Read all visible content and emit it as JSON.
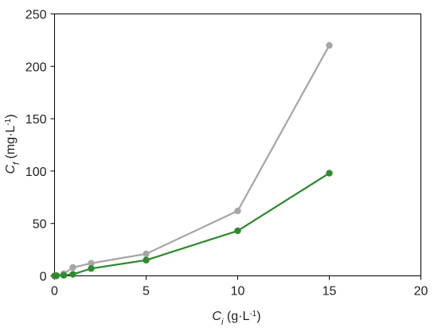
{
  "chart_data": {
    "type": "line",
    "title": "",
    "xlabel": {
      "main": "C",
      "sub": "i",
      "unit": " (g·L",
      "sup": "-1",
      "end": ")"
    },
    "ylabel": {
      "main": "C",
      "sub": "f",
      "unit": " (mg·L",
      "sup": "-1",
      "end": ")"
    },
    "xlim": [
      0,
      20
    ],
    "ylim": [
      0,
      250
    ],
    "xticks": [
      0,
      5,
      10,
      15,
      20
    ],
    "yticks": [
      0,
      50,
      100,
      150,
      200,
      250
    ],
    "grid": false,
    "legend": "none",
    "series": [
      {
        "color": "#a6a6a6",
        "x": [
          0,
          0.1,
          0.5,
          1,
          2,
          5,
          10,
          15
        ],
        "y": [
          0,
          0.5,
          2,
          8,
          12,
          21,
          62,
          220
        ]
      },
      {
        "color": "#2e8b2e",
        "x": [
          0,
          0.1,
          0.5,
          1,
          2,
          5,
          10,
          15
        ],
        "y": [
          0,
          0,
          0.5,
          1.5,
          7,
          15,
          43,
          98
        ]
      }
    ]
  }
}
